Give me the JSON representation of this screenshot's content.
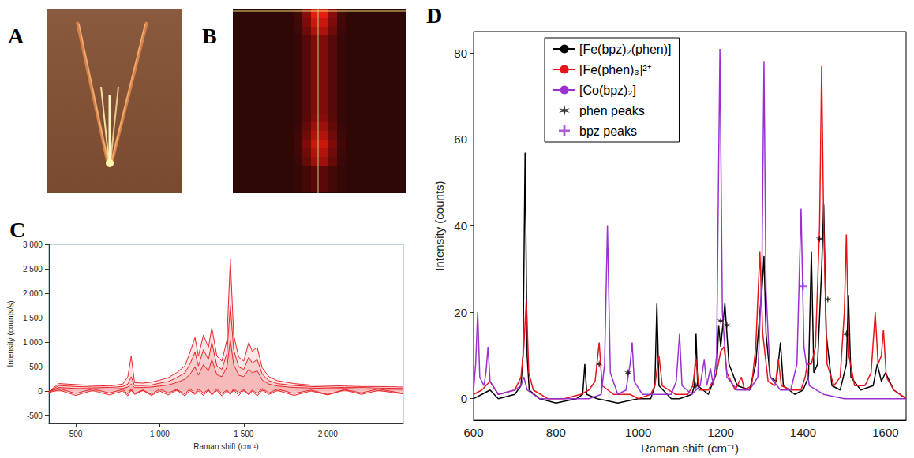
{
  "images": [
    {
      "panel": "A"
    },
    {
      "panel": "B"
    }
  ],
  "chart_data": [
    {
      "panel": "C",
      "type": "area",
      "x_label": "Raman shift (cm⁻¹)",
      "y_label": "Intensity (counts/s)",
      "xlim": [
        340,
        2450
      ],
      "xticks": [
        500,
        {
          "value": 1000,
          "label": "1 000"
        },
        {
          "value": 1500,
          "label": "1 500"
        },
        {
          "value": 2000,
          "label": "2 000"
        }
      ],
      "ylim": [
        -650,
        3000
      ],
      "yticks": [
        -500,
        0,
        500,
        {
          "value": 1000,
          "label": "1 000"
        },
        {
          "value": 1500,
          "label": "1 500"
        },
        {
          "value": 2000,
          "label": "2 000"
        },
        {
          "value": 2500,
          "label": "2 500"
        },
        {
          "value": 3000,
          "label": "3 000"
        }
      ],
      "grid": false,
      "x": [
        340,
        400,
        500,
        600,
        700,
        780,
        810,
        830,
        850,
        900,
        950,
        1000,
        1050,
        1100,
        1150,
        1180,
        1210,
        1230,
        1260,
        1290,
        1310,
        1340,
        1370,
        1400,
        1420,
        1440,
        1470,
        1500,
        1530,
        1550,
        1580,
        1610,
        1650,
        1700,
        1800,
        1900,
        2000,
        2100,
        2200,
        2300,
        2450
      ],
      "series": [
        {
          "color": "#e8262b",
          "values": [
            0,
            160,
            140,
            120,
            110,
            150,
            300,
            720,
            180,
            170,
            190,
            230,
            280,
            380,
            520,
            800,
            1100,
            720,
            1150,
            900,
            1300,
            720,
            620,
            1050,
            2700,
            1150,
            700,
            620,
            1000,
            820,
            900,
            480,
            300,
            220,
            160,
            130,
            120,
            110,
            100,
            100,
            90
          ]
        },
        {
          "color": "#e8262b",
          "values": [
            0,
            120,
            100,
            90,
            80,
            100,
            150,
            300,
            120,
            120,
            130,
            170,
            200,
            280,
            380,
            560,
            800,
            520,
            850,
            650,
            1000,
            520,
            450,
            780,
            1750,
            850,
            500,
            450,
            700,
            580,
            650,
            350,
            220,
            160,
            120,
            100,
            90,
            80,
            80,
            70,
            60
          ]
        },
        {
          "color": "#e8262b",
          "values": [
            0,
            80,
            60,
            60,
            50,
            60,
            90,
            150,
            80,
            80,
            90,
            110,
            130,
            180,
            250,
            350,
            500,
            330,
            550,
            420,
            650,
            340,
            300,
            500,
            1050,
            550,
            330,
            300,
            450,
            380,
            420,
            230,
            150,
            110,
            80,
            70,
            60,
            60,
            50,
            50,
            40
          ]
        },
        {
          "color": "#e8262b",
          "values": [
            0,
            60,
            -40,
            50,
            -30,
            40,
            -50,
            60,
            -40,
            30,
            -60,
            50,
            -30,
            40,
            -50,
            60,
            -40,
            50,
            -30,
            40,
            -60,
            50,
            -40,
            30,
            -50,
            60,
            -30,
            40,
            -50,
            30,
            -40,
            60,
            -30,
            50,
            -40,
            30,
            -60,
            40,
            -30,
            50,
            -40
          ]
        },
        {
          "color": "#e8262b",
          "values": [
            -20,
            30,
            -80,
            20,
            -70,
            10,
            -90,
            30,
            -60,
            20,
            -80,
            10,
            -70,
            30,
            -90,
            20,
            -60,
            10,
            -80,
            30,
            -70,
            20,
            -90,
            10,
            -60,
            30,
            -80,
            20,
            -70,
            10,
            -90,
            30,
            -60,
            20,
            -80,
            10,
            -70,
            30,
            -60,
            20,
            -50
          ]
        }
      ]
    },
    {
      "panel": "D",
      "type": "line",
      "x_label": "Raman shift (cm⁻¹)",
      "y_label": "Intensity (counts)",
      "xlim": [
        600,
        1650
      ],
      "xticks": [
        600,
        800,
        1000,
        1200,
        1400,
        1600
      ],
      "ylim": [
        -5,
        85
      ],
      "yticks": [
        0,
        20,
        40,
        60,
        80
      ],
      "grid": false,
      "legend": "upper left",
      "series": [
        {
          "name": "[Fe(bpz)₂(phen)]",
          "type": "line",
          "color": "#000000",
          "x": [
            600,
            620,
            640,
            660,
            700,
            715,
            720,
            725,
            730,
            735,
            760,
            800,
            850,
            865,
            870,
            875,
            900,
            950,
            1000,
            1030,
            1040,
            1045,
            1050,
            1080,
            1100,
            1130,
            1136,
            1140,
            1144,
            1170,
            1190,
            1195,
            1200,
            1210,
            1220,
            1240,
            1270,
            1285,
            1295,
            1300,
            1305,
            1310,
            1320,
            1335,
            1345,
            1352,
            1380,
            1400,
            1413,
            1420,
            1426,
            1435,
            1445,
            1450,
            1456,
            1470,
            1490,
            1505,
            1510,
            1516,
            1540,
            1570,
            1580,
            1590,
            1600,
            1620,
            1650
          ],
          "values": [
            0,
            1,
            2,
            0,
            1,
            3,
            10,
            57,
            10,
            2,
            0,
            -1,
            0,
            1,
            8,
            1,
            0,
            -1,
            0,
            0,
            3,
            22,
            3,
            0,
            0,
            1,
            3,
            15,
            3,
            1,
            6,
            17,
            12,
            22,
            8,
            3,
            2,
            8,
            20,
            25,
            33,
            15,
            5,
            4,
            13,
            3,
            1,
            2,
            5,
            34,
            6,
            8,
            30,
            45,
            15,
            3,
            2,
            8,
            24,
            5,
            2,
            3,
            8,
            4,
            6,
            2,
            0
          ]
        },
        {
          "name": "[Fe(phen)₃]²⁺",
          "type": "line",
          "color": "#e8141b",
          "x": [
            600,
            620,
            640,
            660,
            700,
            715,
            722,
            728,
            734,
            745,
            780,
            820,
            860,
            880,
            895,
            905,
            912,
            940,
            980,
            1000,
            1030,
            1040,
            1050,
            1058,
            1090,
            1120,
            1132,
            1140,
            1147,
            1170,
            1190,
            1200,
            1208,
            1215,
            1235,
            1250,
            1258,
            1275,
            1285,
            1295,
            1302,
            1315,
            1332,
            1340,
            1347,
            1370,
            1395,
            1405,
            1410,
            1420,
            1430,
            1440,
            1445,
            1450,
            1458,
            1475,
            1490,
            1500,
            1505,
            1511,
            1525,
            1550,
            1565,
            1575,
            1582,
            1590,
            1595,
            1602,
            1620,
            1650
          ],
          "values": [
            1,
            2,
            4,
            1,
            2,
            5,
            12,
            23,
            6,
            2,
            0,
            0,
            1,
            2,
            4,
            13,
            3,
            1,
            1,
            0,
            1,
            3,
            10,
            3,
            1,
            1,
            3,
            9,
            2,
            2,
            6,
            11,
            12,
            6,
            2,
            5,
            2,
            3,
            12,
            34,
            15,
            4,
            3,
            9,
            3,
            2,
            2,
            5,
            8,
            8,
            12,
            40,
            77,
            40,
            8,
            3,
            5,
            20,
            38,
            10,
            3,
            3,
            6,
            20,
            8,
            10,
            16,
            5,
            2,
            0
          ]
        },
        {
          "name": "[Co(bpz)₂]",
          "type": "line",
          "color": "#9b30d0",
          "x": [
            600,
            605,
            610,
            615,
            625,
            630,
            635,
            640,
            660,
            700,
            715,
            722,
            730,
            760,
            800,
            850,
            880,
            910,
            918,
            925,
            932,
            950,
            970,
            980,
            985,
            990,
            1010,
            1050,
            1080,
            1092,
            1100,
            1106,
            1130,
            1150,
            1160,
            1166,
            1175,
            1182,
            1190,
            1198,
            1204,
            1215,
            1240,
            1270,
            1290,
            1300,
            1305,
            1310,
            1320,
            1345,
            1370,
            1385,
            1395,
            1402,
            1415,
            1450,
            1500,
            1550,
            1600,
            1650
          ],
          "values": [
            2,
            8,
            20,
            5,
            3,
            6,
            12,
            4,
            1,
            2,
            3,
            5,
            2,
            0,
            0,
            0,
            0,
            1,
            8,
            40,
            6,
            1,
            2,
            8,
            13,
            4,
            1,
            1,
            1,
            4,
            15,
            3,
            1,
            3,
            9,
            3,
            7,
            3,
            10,
            81,
            20,
            5,
            2,
            2,
            5,
            30,
            78,
            25,
            5,
            2,
            2,
            8,
            44,
            12,
            3,
            1,
            0,
            0,
            0,
            0
          ]
        },
        {
          "name": "phen peaks",
          "type": "scatter",
          "marker": "asterisk",
          "color": "#000000",
          "x": [
            905,
            975,
            1140,
            1200,
            1215,
            1440,
            1460,
            1505
          ],
          "values": [
            8,
            6,
            3,
            18,
            17,
            37,
            23,
            15
          ]
        },
        {
          "name": "bpz peaks",
          "type": "scatter",
          "marker": "plus",
          "color": "#9b30d0",
          "x": [
            1400
          ],
          "values": [
            26
          ]
        }
      ]
    }
  ]
}
